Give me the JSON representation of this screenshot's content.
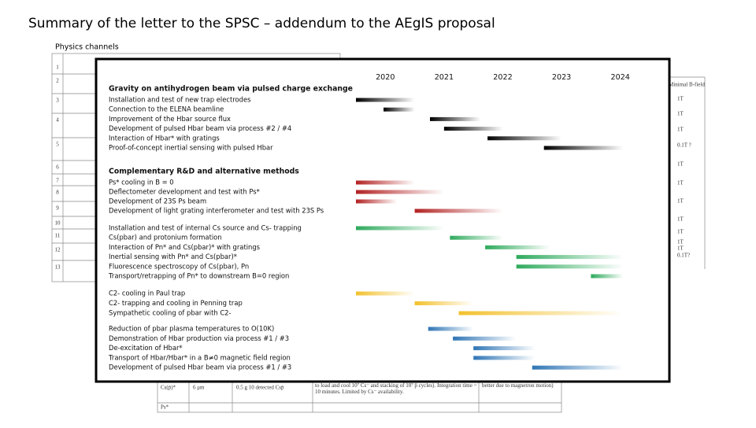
{
  "header": {
    "title": "Summary of the letter to the SPSC – addendum to the AEgIS proposal",
    "subtitle": "Physics channels"
  },
  "background_table": {
    "row_numbers": [
      "1",
      "2",
      "3",
      "4",
      "5",
      "6",
      "7",
      "8",
      "9",
      "10",
      "11",
      "12",
      "13"
    ],
    "field_header": "Minimal B-field",
    "fields": [
      "1T",
      "1T",
      "1T",
      "0.1T ?",
      "1T",
      "1T",
      "1T",
      "1T",
      "1T",
      "1T",
      "1T",
      "0.1T?"
    ],
    "bottom_rows": [
      [
        "Cs(p̄)*",
        "6 μm",
        "0.5 g 10 detected Csp̄",
        "to load and cool 10⁷ Cs⁻ and stacking of 10⁷ p̄ cycles). Integration time ~ 10 minutes. Limited by Cs⁻ availability.",
        "better due to magnetron motion)"
      ],
      [
        "Ps*"
      ]
    ]
  },
  "gantt": {
    "years": [
      2020,
      2021,
      2022,
      2023,
      2024
    ],
    "xlim": [
      2020,
      2025
    ],
    "sections": [
      {
        "title": "Gravity on antihydrogen beam via pulsed charge exchange",
        "color": "#000000",
        "tasks": [
          {
            "label": "Installation and test of new trap electrodes",
            "start": 2020.0,
            "end": 2021.0
          },
          {
            "label": "Connection to the ELENA beamline",
            "start": 2020.47,
            "end": 2021.0
          },
          {
            "label": "Improvement of the Hbar source flux",
            "start": 2021.26,
            "end": 2022.12
          },
          {
            "label": "Development of pulsed Hbar beam via process #2 / #4",
            "start": 2021.5,
            "end": 2022.5
          },
          {
            "label": "Interaction of Hbar* with gratings",
            "start": 2022.24,
            "end": 2023.5
          },
          {
            "label": "Proof-of-concept inertial sensing with pulsed Hbar",
            "start": 2023.2,
            "end": 2024.55
          }
        ]
      },
      {
        "title": "Complementary R&D and alternative methods",
        "color": "#b22222",
        "tasks": [
          {
            "label": "Ps* cooling in B = 0",
            "start": 2020.0,
            "end": 2021.0
          },
          {
            "label": "Deflectometer development and test with Ps*",
            "start": 2020.0,
            "end": 2021.5
          },
          {
            "label": "Development of 23S Ps beam",
            "start": 2020.0,
            "end": 2020.7
          },
          {
            "label": "Development of light grating interferometer and test with 23S Ps",
            "start": 2021.0,
            "end": 2022.5
          }
        ]
      },
      {
        "color": "#2eaa5c",
        "tasks": [
          {
            "label": "Installation and test of internal Cs source and Cs- trapping",
            "start": 2020.0,
            "end": 2021.5
          },
          {
            "label": "Cs(pbar) and protonium formation",
            "start": 2021.6,
            "end": 2022.5
          },
          {
            "label": "Interaction of Pn* and Cs(pbar)* with gratings",
            "start": 2022.2,
            "end": 2023.3
          },
          {
            "label": "Inertial sensing with Pn* and Cs(pbar)*",
            "start": 2022.73,
            "end": 2024.55
          },
          {
            "label": "Fluorescence spectroscopy of Cs(pbar), Pn",
            "start": 2022.73,
            "end": 2024.55
          },
          {
            "label": "Transport/retrapping of Pn* to downstream B=0 region",
            "start": 2024.0,
            "end": 2024.55
          }
        ]
      },
      {
        "color": "#f2c12e",
        "tasks": [
          {
            "label": "C2- cooling in Paul trap",
            "start": 2020.0,
            "end": 2021.0
          },
          {
            "label": "C2- trapping and cooling in Penning trap",
            "start": 2021.0,
            "end": 2022.0
          },
          {
            "label": "Sympathetic cooling of pbar with C2-",
            "start": 2021.75,
            "end": 2024.55
          }
        ]
      },
      {
        "color": "#2f75b5",
        "tasks": [
          {
            "label": "Reduction of pbar plasma temperatures to O(10K)",
            "start": 2021.23,
            "end": 2022.0
          },
          {
            "label": "Demonstration of Hbar production via process #1 / #3",
            "start": 2021.65,
            "end": 2022.72
          },
          {
            "label": "De-excitation of Hbar*",
            "start": 2022.0,
            "end": 2023.05
          },
          {
            "label": "Transport of Hbar/Hbar* in a B≠0 magnetic field region",
            "start": 2022.0,
            "end": 2023.05
          },
          {
            "label": "Development of pulsed Hbar beam via process #1 / #3",
            "start": 2023.0,
            "end": 2024.55
          }
        ]
      }
    ]
  }
}
